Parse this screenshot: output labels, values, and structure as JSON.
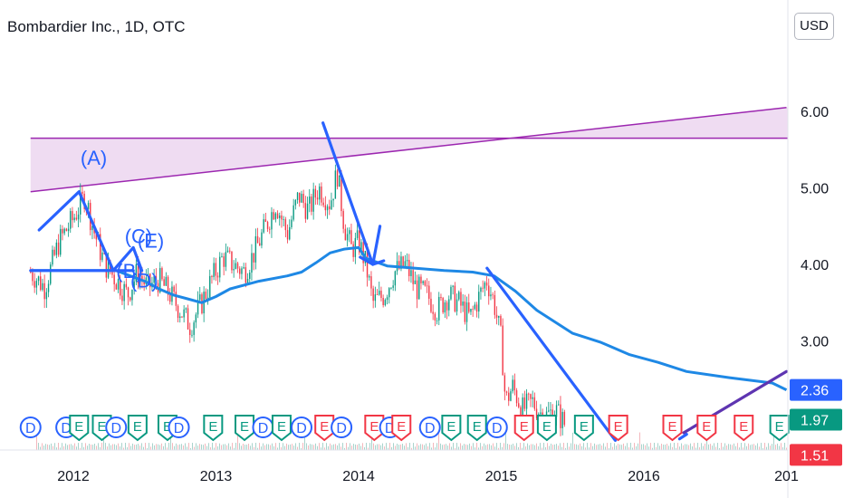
{
  "header": {
    "symbol_title": "Bombardier Inc., 1D, OTC",
    "currency": "USD"
  },
  "chart_data": {
    "type": "line",
    "title": "Bombardier Inc., 1D, OTC",
    "xlabel": "",
    "ylabel": "",
    "x_tick_labels": [
      "2012",
      "2013",
      "2014",
      "2015",
      "2016",
      "201"
    ],
    "y_tick_labels": [
      "3.00",
      "4.00",
      "5.00",
      "6.00"
    ],
    "ylim": [
      1.7,
      6.7
    ],
    "grid": false,
    "price_badges": [
      {
        "label": "2.36",
        "value": 2.36,
        "color": "#2962ff"
      },
      {
        "label": "1.97",
        "value": 1.97,
        "color": "#089981"
      },
      {
        "label": "1.51",
        "value": 1.51,
        "color": "#f23645"
      }
    ],
    "series": [
      {
        "type": "candlestick",
        "color_up": "#089981",
        "color_down": "#f23645",
        "x": [
          2011.7,
          2011.8,
          2011.9,
          2012.0,
          2012.08,
          2012.15,
          2012.22,
          2012.3,
          2012.38,
          2012.45,
          2012.52,
          2012.6,
          2012.68,
          2012.75,
          2012.82,
          2012.9,
          2012.97,
          2013.05,
          2013.12,
          2013.2,
          2013.28,
          2013.35,
          2013.42,
          2013.5,
          2013.58,
          2013.65,
          2013.72,
          2013.8,
          2013.85,
          2013.9,
          2013.95,
          2014.0,
          2014.05,
          2014.1,
          2014.18,
          2014.25,
          2014.33,
          2014.4,
          2014.48,
          2014.55,
          2014.63,
          2014.7,
          2014.78,
          2014.85,
          2014.9,
          2014.95,
          2015.0,
          2015.03,
          2015.08,
          2015.15,
          2015.22,
          2015.3,
          2015.38,
          2015.45
        ],
        "close": [
          3.9,
          3.7,
          4.3,
          4.6,
          4.9,
          4.4,
          4.0,
          3.8,
          3.6,
          3.9,
          3.7,
          3.8,
          3.6,
          3.4,
          3.2,
          3.5,
          3.8,
          4.1,
          4.0,
          3.9,
          4.2,
          4.5,
          4.8,
          4.4,
          4.9,
          4.7,
          5.0,
          4.8,
          5.2,
          4.5,
          4.2,
          4.3,
          4.0,
          3.5,
          3.6,
          3.9,
          4.0,
          3.7,
          3.6,
          3.4,
          3.6,
          3.5,
          3.3,
          3.6,
          3.8,
          3.5,
          3.0,
          2.2,
          2.4,
          2.1,
          2.2,
          2.0,
          2.1,
          1.9
        ]
      },
      {
        "name": "",
        "type": "moving-average",
        "color": "#1e88e5",
        "x": [
          2011.7,
          2011.9,
          2012.1,
          2012.3,
          2012.5,
          2012.6,
          2012.7,
          2012.8,
          2012.9,
          2013.0,
          2013.1,
          2013.3,
          2013.5,
          2013.6,
          2013.7,
          2013.8,
          2013.9,
          2014.0,
          2014.05,
          2014.2,
          2014.4,
          2014.6,
          2014.8,
          2014.95,
          2015.1,
          2015.25,
          2015.5,
          2015.7,
          2015.9,
          2016.1,
          2016.3,
          2016.6,
          2016.9,
          2017.0
        ],
        "y": [
          3.92,
          3.92,
          3.92,
          3.92,
          3.78,
          3.68,
          3.6,
          3.55,
          3.5,
          3.58,
          3.68,
          3.78,
          3.85,
          3.9,
          4.02,
          4.15,
          4.2,
          4.22,
          4.08,
          3.98,
          3.95,
          3.92,
          3.9,
          3.85,
          3.65,
          3.4,
          3.1,
          2.98,
          2.82,
          2.72,
          2.6,
          2.52,
          2.45,
          2.36
        ]
      }
    ],
    "drawings": {
      "channel": {
        "color": "#9c27b0",
        "fill": "rgba(156,39,176,0.16)",
        "upper_y": 5.65,
        "lower_start": [
          2011.7,
          4.95
        ],
        "lower_end": [
          2017.0,
          6.05
        ]
      },
      "wave_labels": [
        {
          "text": "(A)",
          "x": 2012.05,
          "y": 5.3
        },
        {
          "text": "(C)",
          "x": 2012.36,
          "y": 4.28
        },
        {
          "text": "(E)",
          "x": 2012.45,
          "y": 4.22
        },
        {
          "text": "(B)",
          "x": 2012.3,
          "y": 3.82
        },
        {
          "text": "(D)",
          "x": 2012.4,
          "y": 3.7
        }
      ],
      "trend_lines": [
        {
          "color": "#2962ff",
          "points": [
            [
              2011.76,
              4.45
            ],
            [
              2012.04,
              4.95
            ],
            [
              2012.28,
              3.92
            ],
            [
              2012.42,
              4.22
            ],
            [
              2012.48,
              3.92
            ]
          ]
        },
        {
          "color": "#2962ff",
          "points": [
            [
              2011.7,
              3.92
            ],
            [
              2012.42,
              3.92
            ]
          ]
        },
        {
          "color": "#2962ff",
          "points": [
            [
              2013.75,
              5.85
            ],
            [
              2014.1,
              4.0
            ]
          ],
          "arrow": true
        },
        {
          "color": "#2962ff",
          "points": [
            [
              2014.15,
              4.5
            ],
            [
              2014.1,
              4.0
            ]
          ],
          "arrow": false
        },
        {
          "color": "#2962ff",
          "points": [
            [
              2014.9,
              3.95
            ],
            [
              2015.8,
              1.7
            ]
          ]
        },
        {
          "color": "#2962ff",
          "points": [
            [
              2016.25,
              1.72
            ],
            [
              2016.3,
              1.78
            ]
          ]
        },
        {
          "color": "#5e35b1",
          "points": [
            [
              2016.28,
              1.8
            ],
            [
              2017.0,
              2.6
            ]
          ]
        }
      ]
    },
    "events": [
      {
        "letter": "D",
        "x": 2011.7
      },
      {
        "letter": "D",
        "x": 2011.95
      },
      {
        "letter": "E",
        "x": 2012.04
      },
      {
        "letter": "E",
        "x": 2012.2
      },
      {
        "letter": "D",
        "x": 2012.3
      },
      {
        "letter": "E",
        "x": 2012.45
      },
      {
        "letter": "E",
        "x": 2012.66
      },
      {
        "letter": "D",
        "x": 2012.74
      },
      {
        "letter": "E",
        "x": 2012.98
      },
      {
        "letter": "E",
        "x": 2013.2
      },
      {
        "letter": "D",
        "x": 2013.33
      },
      {
        "letter": "E",
        "x": 2013.46
      },
      {
        "letter": "D",
        "x": 2013.6
      },
      {
        "letter": "E",
        "x": 2013.76
      },
      {
        "letter": "D",
        "x": 2013.88
      },
      {
        "letter": "E",
        "x": 2014.11
      },
      {
        "letter": "D",
        "x": 2014.22
      },
      {
        "letter": "E",
        "x": 2014.3
      },
      {
        "letter": "D",
        "x": 2014.5
      },
      {
        "letter": "E",
        "x": 2014.65
      },
      {
        "letter": "E",
        "x": 2014.83
      },
      {
        "letter": "D",
        "x": 2014.97
      },
      {
        "letter": "E",
        "x": 2015.16
      },
      {
        "letter": "E",
        "x": 2015.32
      },
      {
        "letter": "E",
        "x": 2015.58
      },
      {
        "letter": "E",
        "x": 2015.82
      },
      {
        "letter": "E",
        "x": 2016.2
      },
      {
        "letter": "E",
        "x": 2016.44
      },
      {
        "letter": "E",
        "x": 2016.7
      },
      {
        "letter": "E",
        "x": 2016.95
      }
    ]
  }
}
